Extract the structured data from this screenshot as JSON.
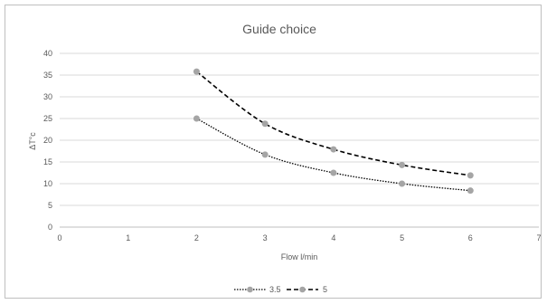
{
  "chart_data": {
    "type": "scatter",
    "title": "Guide choice",
    "xlabel": "Flow l/min",
    "ylabel": "ΔT°c",
    "xlim": [
      0,
      7
    ],
    "ylim": [
      0,
      40
    ],
    "x_ticks": [
      0,
      1,
      2,
      3,
      4,
      5,
      6,
      7
    ],
    "y_ticks": [
      0,
      5,
      10,
      15,
      20,
      25,
      30,
      35,
      40
    ],
    "grid": "horizontal",
    "legend_position": "bottom",
    "series": [
      {
        "name": "3.5",
        "line_style": "dotted",
        "color": "#000000",
        "marker_color": "#a5a5a5",
        "x": [
          2,
          3,
          4,
          5,
          6
        ],
        "y": [
          25.0,
          16.7,
          12.5,
          10.0,
          8.4
        ]
      },
      {
        "name": "5",
        "line_style": "dashed",
        "color": "#000000",
        "marker_color": "#a5a5a5",
        "x": [
          2,
          3,
          4,
          5,
          6
        ],
        "y": [
          35.8,
          23.8,
          17.9,
          14.3,
          11.9
        ]
      }
    ]
  }
}
